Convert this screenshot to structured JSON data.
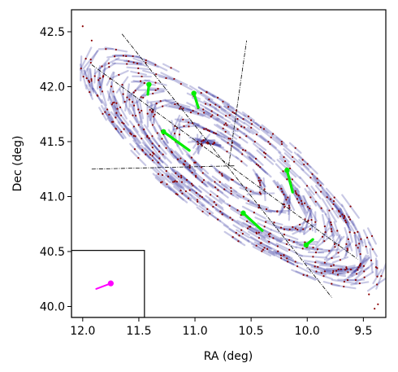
{
  "chart_data": {
    "type": "scatter",
    "xlabel": "RA (deg)",
    "ylabel": "Dec (deg)",
    "xlim": [
      12.1,
      9.3
    ],
    "ylim": [
      39.9,
      42.7
    ],
    "x_ticks": [
      12.0,
      11.5,
      11.0,
      10.5,
      10.0,
      9.5
    ],
    "x_tick_labels": [
      "12.0",
      "11.5",
      "11.0",
      "10.5",
      "10.0",
      "9.5"
    ],
    "y_ticks": [
      40.0,
      40.5,
      41.0,
      41.5,
      42.0,
      42.5
    ],
    "y_tick_labels": [
      "40.0",
      "40.5",
      "41.0",
      "41.5",
      "42.0",
      "42.5"
    ],
    "grid": false,
    "colors": {
      "points": "#8b0000",
      "vectors": "#3a3aa0",
      "highlight_vectors": "#00ee00",
      "reference_vector": "#ff00ff",
      "dashed_lines": "#000000"
    },
    "ellipse_model": {
      "center": [
        10.68,
        41.27
      ],
      "position_angle_deg": 38,
      "rings": [
        {
          "a": 0.35,
          "b": 0.1
        },
        {
          "a": 0.6,
          "b": 0.18
        },
        {
          "a": 0.85,
          "b": 0.26
        },
        {
          "a": 1.1,
          "b": 0.33
        },
        {
          "a": 1.35,
          "b": 0.4
        },
        {
          "a": 1.55,
          "b": 0.45
        }
      ]
    },
    "dashed_lines": [
      {
        "x": [
          11.92,
          9.55
        ],
        "y": [
          42.2,
          40.43
        ]
      },
      {
        "x": [
          11.65,
          9.78
        ],
        "y": [
          42.48,
          40.08
        ]
      },
      {
        "x": [
          11.92,
          10.65
        ],
        "y": [
          41.25,
          41.28
        ]
      },
      {
        "x": [
          10.7,
          10.54
        ],
        "y": [
          41.28,
          42.42
        ]
      }
    ],
    "highlight_vectors": [
      {
        "x": [
          11.28,
          11.05
        ],
        "y": [
          41.59,
          41.42
        ]
      },
      {
        "x": [
          11.41,
          11.42
        ],
        "y": [
          42.02,
          41.93
        ]
      },
      {
        "x": [
          11.01,
          10.97
        ],
        "y": [
          41.94,
          41.81
        ]
      },
      {
        "x": [
          10.57,
          10.4
        ],
        "y": [
          40.85,
          40.69
        ]
      },
      {
        "x": [
          10.18,
          10.13
        ],
        "y": [
          41.24,
          41.04
        ]
      },
      {
        "x": [
          10.01,
          9.95
        ],
        "y": [
          40.56,
          40.61
        ]
      }
    ],
    "inset_box": {
      "x": [
        12.1,
        11.45
      ],
      "y": [
        39.9,
        40.51
      ]
    },
    "reference_vector": {
      "x": [
        11.88,
        11.75
      ],
      "y": [
        40.16,
        40.21
      ]
    },
    "outlier_points": [
      {
        "x": 9.4,
        "y": 39.98
      },
      {
        "x": 9.45,
        "y": 40.11
      },
      {
        "x": 9.37,
        "y": 40.02
      },
      {
        "x": 12.0,
        "y": 42.55
      },
      {
        "x": 11.92,
        "y": 42.42
      }
    ]
  }
}
